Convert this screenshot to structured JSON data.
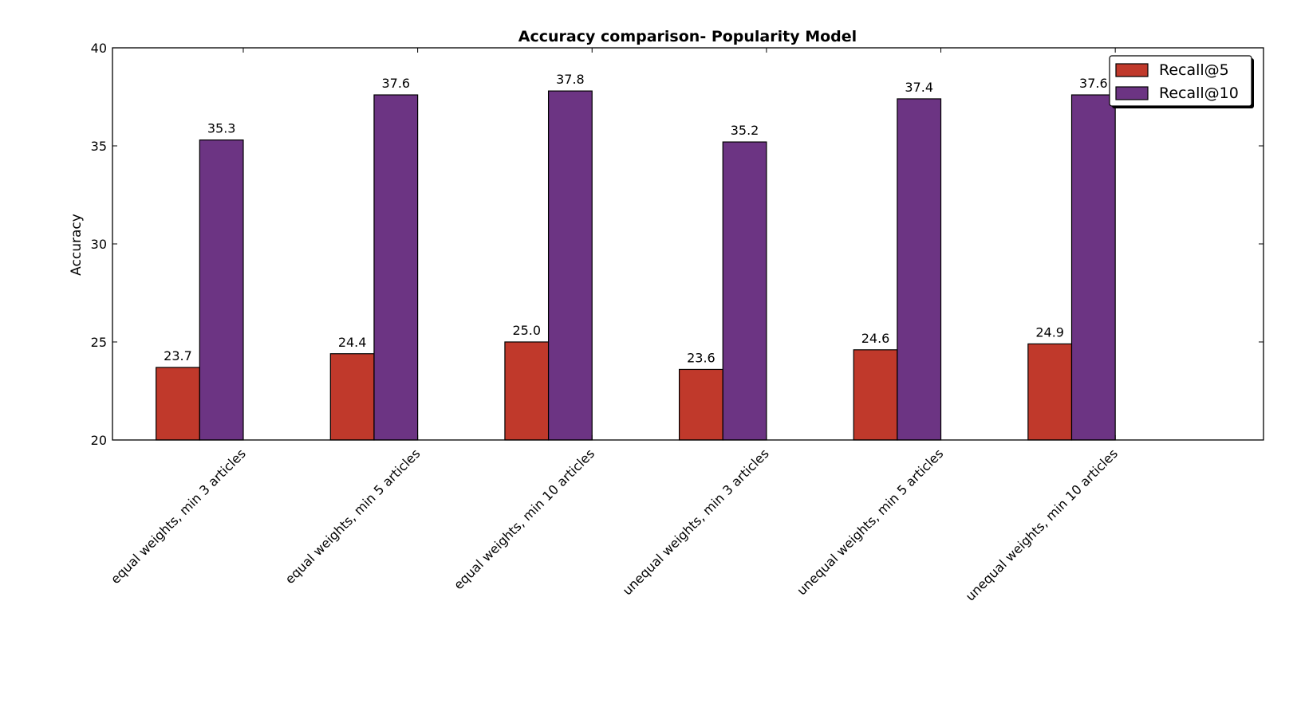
{
  "chart_data": {
    "type": "bar",
    "title": "Accuracy comparison- Popularity Model",
    "xlabel": "",
    "ylabel": "Accuracy",
    "ylim": [
      20,
      40
    ],
    "yticks": [
      "20",
      "25",
      "30",
      "35",
      "40"
    ],
    "categories": [
      "equal weights, min 3 articles",
      "equal weights, min 5 articles",
      "equal weights, min 10 articles",
      "unequal weights, min 3 articles",
      "unequal weights, min 5 articles",
      "unequal weights, min 10 articles"
    ],
    "series": [
      {
        "name": "Recall@5",
        "values": [
          23.7,
          24.4,
          25.0,
          23.6,
          24.6,
          24.9
        ],
        "labels": [
          "23.7",
          "24.4",
          "25.0",
          "23.6",
          "24.6",
          "24.9"
        ],
        "color": "#c0392b"
      },
      {
        "name": "Recall@10",
        "values": [
          35.3,
          37.6,
          37.8,
          35.2,
          37.4,
          37.6
        ],
        "labels": [
          "35.3",
          "37.6",
          "37.8",
          "35.2",
          "37.4",
          "37.6"
        ],
        "color": "#6c3483"
      }
    ],
    "grid": false,
    "legend": "top-right"
  }
}
